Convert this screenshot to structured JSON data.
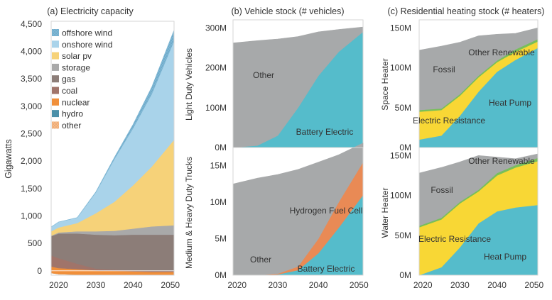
{
  "colors": {
    "offshore_wind": "#7fb7d4",
    "onshore_wind": "#a9d3ea",
    "solar_pv": "#f6d279",
    "storage": "#a9a9a9",
    "gas": "#8c7d78",
    "coal": "#a0746a",
    "nuclear": "#f08f3a",
    "hydro": "#4a8fa8",
    "other_elec": "#f5bb8a",
    "ev_teal": "#55bccb",
    "grey": "#a7a9aa",
    "h2_orange": "#e98a55",
    "yellow": "#f8d735",
    "green": "#78bf5a"
  },
  "chart_data": [
    {
      "type": "area",
      "title": "(a) Electricity capacity",
      "ylabel": "Gigawatts",
      "xlabel": "",
      "x": [
        2018,
        2020,
        2025,
        2030,
        2035,
        2040,
        2045,
        2051
      ],
      "x_ticks": [
        "2020",
        "2030",
        "2040",
        "2050"
      ],
      "y_ticks": [
        "0",
        "500",
        "1,000",
        "1,500",
        "2,000",
        "2,500",
        "3,000",
        "3,500",
        "4,000",
        "4,500"
      ],
      "ylim": [
        -80,
        4550
      ],
      "legend_position": "top-left",
      "series": [
        {
          "name": "hydro",
          "values": [
            -40,
            -60,
            -70,
            -80,
            -80,
            -80,
            -80,
            -80
          ]
        },
        {
          "name": "other",
          "values": [
            0,
            0,
            0,
            0,
            0,
            0,
            0,
            0
          ]
        },
        {
          "name": "nuclear",
          "values": [
            120,
            110,
            100,
            90,
            80,
            70,
            60,
            60
          ]
        },
        {
          "name": "coal",
          "values": [
            200,
            180,
            100,
            30,
            20,
            20,
            20,
            20
          ]
        },
        {
          "name": "gas",
          "values": [
            350,
            450,
            550,
            620,
            630,
            650,
            660,
            660
          ]
        },
        {
          "name": "storage",
          "values": [
            10,
            20,
            40,
            60,
            80,
            110,
            150,
            170
          ]
        },
        {
          "name": "solar pv",
          "values": [
            80,
            90,
            150,
            330,
            530,
            790,
            1090,
            1560
          ]
        },
        {
          "name": "onshore wind",
          "values": [
            80,
            100,
            100,
            380,
            780,
            1040,
            1320,
            1800
          ]
        },
        {
          "name": "offshore wind",
          "values": [
            0,
            0,
            0,
            10,
            30,
            70,
            130,
            200
          ]
        }
      ]
    },
    {
      "type": "area",
      "title": "(b) Vehicle stock (# vehicles)",
      "ylabel": "Light Duty Vehicles",
      "x": [
        2019,
        2025,
        2030,
        2035,
        2040,
        2045,
        2051
      ],
      "y_ticks": [
        "0M",
        "100M",
        "200M",
        "300M"
      ],
      "ylim": [
        0,
        320
      ],
      "series": [
        {
          "name": "Battery Electric",
          "values": [
            0,
            5,
            30,
            100,
            180,
            240,
            290
          ]
        },
        {
          "name": "Other",
          "values": [
            262,
            263,
            242,
            178,
            110,
            56,
            12
          ]
        }
      ]
    },
    {
      "type": "area",
      "ylabel": "Medium & Heavy Duty Trucks",
      "x": [
        2019,
        2025,
        2030,
        2035,
        2040,
        2045,
        2051
      ],
      "x_ticks": [
        "2020",
        "2030",
        "2040",
        "2050"
      ],
      "y_ticks": [
        "0M",
        "5M",
        "10M",
        "15M"
      ],
      "ylim": [
        0,
        17.5
      ],
      "series": [
        {
          "name": "Battery Electric",
          "values": [
            0,
            0,
            0.1,
            0.7,
            3,
            6.5,
            11
          ]
        },
        {
          "name": "Hydrogen Fuel Cell",
          "values": [
            0,
            0,
            0.1,
            0.5,
            2,
            3.5,
            4.5
          ]
        },
        {
          "name": "Other",
          "values": [
            12.5,
            13.3,
            13.6,
            13.3,
            10.5,
            6.5,
            2.6
          ]
        }
      ]
    },
    {
      "type": "area",
      "title": "(c) Residential heating stock (# heaters)",
      "ylabel": "Space Heater",
      "x": [
        2019,
        2025,
        2030,
        2035,
        2040,
        2045,
        2051
      ],
      "y_ticks": [
        "0M",
        "50M",
        "100M",
        "150M"
      ],
      "ylim": [
        0,
        160
      ],
      "series": [
        {
          "name": "Heat Pump",
          "values": [
            10,
            15,
            40,
            70,
            95,
            110,
            125
          ]
        },
        {
          "name": "Electric Resistance",
          "values": [
            35,
            32,
            25,
            18,
            12,
            10,
            8
          ]
        },
        {
          "name": "Other Renewable",
          "values": [
            2,
            2,
            2,
            2,
            2,
            3,
            3
          ]
        },
        {
          "name": "Fossil",
          "values": [
            75,
            78,
            65,
            50,
            33,
            20,
            14
          ]
        }
      ]
    },
    {
      "type": "area",
      "ylabel": "Water Heater",
      "x": [
        2019,
        2025,
        2030,
        2035,
        2040,
        2045,
        2051
      ],
      "x_ticks": [
        "2020",
        "2030",
        "2040",
        "2050"
      ],
      "y_ticks": [
        "0M",
        "50M",
        "100M",
        "150M"
      ],
      "ylim": [
        0,
        160
      ],
      "series": [
        {
          "name": "Heat Pump",
          "values": [
            0,
            10,
            35,
            65,
            80,
            85,
            88
          ]
        },
        {
          "name": "Electric Resistance",
          "values": [
            60,
            60,
            55,
            40,
            45,
            50,
            55
          ]
        },
        {
          "name": "Other Renewable",
          "values": [
            2,
            2,
            2,
            2,
            3,
            3,
            4
          ]
        },
        {
          "name": "Fossil",
          "values": [
            66,
            63,
            50,
            43,
            20,
            8,
            5
          ]
        }
      ]
    }
  ],
  "panel_labels": {
    "ldv_other": "Other",
    "ldv_bev": "Battery Electric",
    "mhd_other": "Other",
    "mhd_h2": "Hydrogen Fuel Cell",
    "mhd_bev": "Battery Electric",
    "sh_fossil": "Fossil",
    "sh_otherren": "Other Renewable",
    "sh_elecres": "Electric Resistance",
    "sh_hp": "Heat Pump",
    "wh_fossil": "Fossil",
    "wh_otherren": "Other Renewable",
    "wh_elecres": "Electric Resistance",
    "wh_hp": "Heat Pump"
  }
}
